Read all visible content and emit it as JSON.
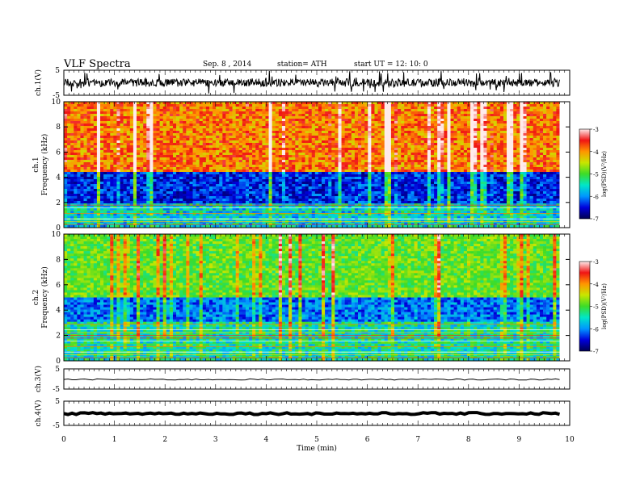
{
  "header": {
    "title": "VLF  Spectra",
    "date": "Sep. 8  , 2014",
    "station": "station= ATH",
    "start_ut": "start  UT  =   12: 10: 0"
  },
  "chart_data": [
    {
      "type": "line",
      "panel": "ch1-waveform",
      "ylabel": "ch.1(V)",
      "ylim": [
        -5,
        5
      ],
      "yticks": [
        "5",
        "-5"
      ],
      "x_range_min": [
        0,
        9.8
      ],
      "signal": "continuous noisy VLF waveform, amplitude about +/-2 V with frequent spikes (sferics)"
    },
    {
      "type": "heatmap",
      "panel": "ch1-spectrogram",
      "ylabel_channel": "ch.1",
      "ylabel": "Frequency  (kHz)",
      "ylim": [
        0,
        10
      ],
      "yticks": [
        "0",
        "2",
        "4",
        "6",
        "8",
        "10"
      ],
      "x_range_min": [
        0,
        9.8
      ],
      "colorbar": {
        "label": "log(PSD)(V²/Hz)",
        "range": [
          -7,
          -3
        ],
        "ticks": [
          "-3",
          "-4",
          "-5",
          "-6",
          "-7"
        ]
      },
      "features": "high PSD (-3 to -4, red/yellow) above about 4.5 kHz, low PSD (-6 to -7, blue) in 2-4.5 kHz, horizontal narrowband lines below 2 kHz, vertical broadband sferic streaks"
    },
    {
      "type": "heatmap",
      "panel": "ch2-spectrogram",
      "ylabel_channel": "ch.2",
      "ylabel": "Frequency  (kHz)",
      "ylim": [
        0,
        10
      ],
      "yticks": [
        "0",
        "2",
        "4",
        "6",
        "8",
        "10"
      ],
      "x_range_min": [
        0,
        9.8
      ],
      "colorbar": {
        "label": "log(PSD)(V²/Hz)",
        "range": [
          -7,
          -3
        ],
        "ticks": [
          "-3",
          "-4",
          "-5",
          "-6",
          "-7"
        ]
      },
      "features": "mostly green (about -5) above 5 kHz with red/yellow sferic streaks, blue band at 3-5 kHz, horizontal narrowband lines below 3 kHz"
    },
    {
      "type": "line",
      "panel": "ch3-waveform",
      "ylabel": "ch.3(V)",
      "ylim": [
        -5,
        5
      ],
      "yticks": [
        "5",
        "-5"
      ],
      "x_range_min": [
        0,
        9.8
      ],
      "signal": "nearly flat trace at about 0 V"
    },
    {
      "type": "line",
      "panel": "ch4-waveform",
      "ylabel": "ch.4(V)",
      "ylim": [
        -5,
        5
      ],
      "yticks": [
        "5",
        "-5"
      ],
      "x_range_min": [
        0,
        9.8
      ],
      "signal": "thick flat trace at about 0 V"
    }
  ],
  "x_axis": {
    "label": "Time  (min)",
    "range": [
      0,
      10
    ],
    "ticks": [
      "0",
      "1",
      "2",
      "3",
      "4",
      "5",
      "6",
      "7",
      "8",
      "9",
      "10"
    ]
  }
}
